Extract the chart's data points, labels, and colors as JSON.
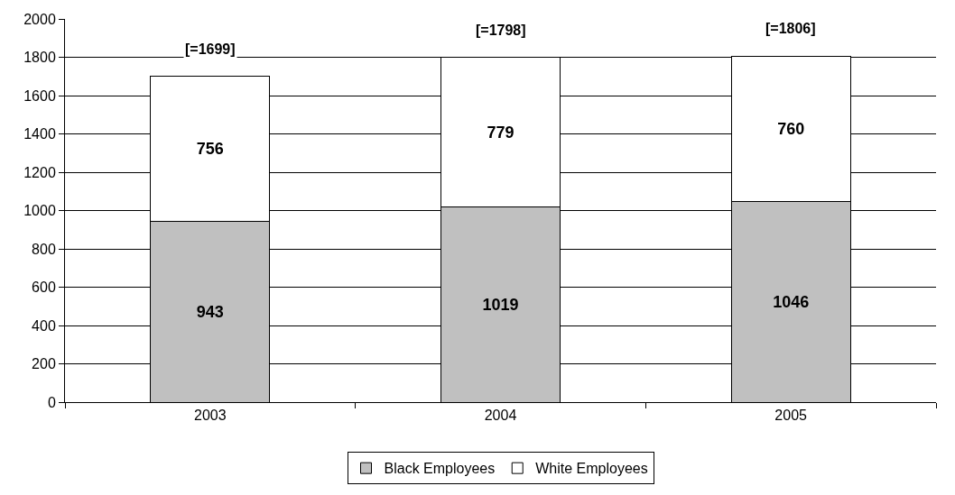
{
  "chart_data": {
    "type": "bar",
    "stacked": true,
    "categories": [
      "2003",
      "2004",
      "2005"
    ],
    "series": [
      {
        "name": "Black Employees",
        "color": "#c0c0c0",
        "values": [
          943,
          1019,
          1046
        ]
      },
      {
        "name": "White Employees",
        "color": "#ffffff",
        "values": [
          756,
          779,
          760
        ]
      }
    ],
    "totals": [
      "[=1699]",
      "[=1798]",
      "[=1806]"
    ],
    "data_labels": true,
    "ylim": [
      0,
      2000
    ],
    "yticks": [
      0,
      200,
      400,
      600,
      800,
      1000,
      1200,
      1400,
      1600,
      1800,
      2000
    ],
    "grid": "y",
    "legend": "bottom"
  }
}
